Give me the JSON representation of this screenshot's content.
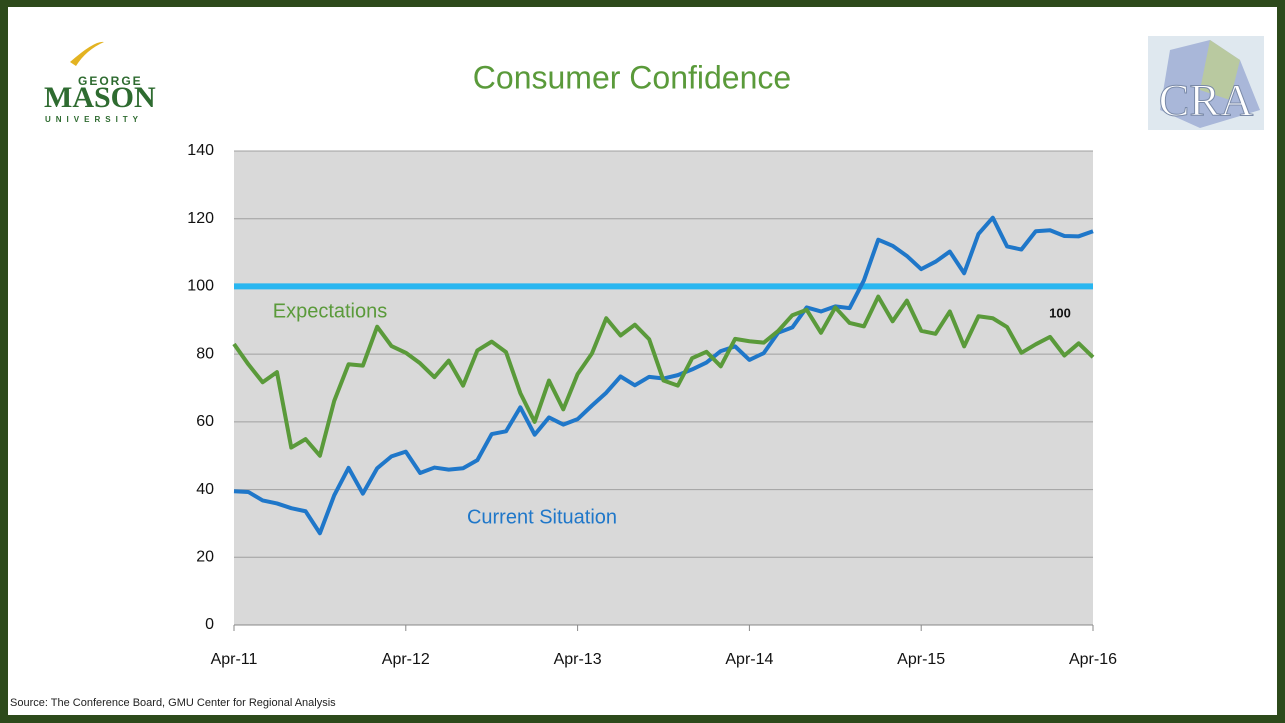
{
  "chart_data": {
    "type": "line",
    "title": "Consumer Confidence",
    "categories": [
      "Apr-11",
      null,
      null,
      null,
      null,
      null,
      null,
      null,
      null,
      null,
      null,
      null,
      "Apr-12",
      null,
      null,
      null,
      null,
      null,
      null,
      null,
      null,
      null,
      null,
      null,
      "Apr-13",
      null,
      null,
      null,
      null,
      null,
      null,
      null,
      null,
      null,
      null,
      null,
      "Apr-14",
      null,
      null,
      null,
      null,
      null,
      null,
      null,
      null,
      null,
      null,
      null,
      "Apr-15",
      null,
      null,
      null,
      null,
      null,
      null,
      null,
      null,
      null,
      null,
      null,
      "Apr-16"
    ],
    "series": [
      {
        "name": "Current Situation",
        "color": "#1f77c9",
        "values": [
          39.5,
          39.3,
          36.8,
          35.9,
          34.5,
          33.6,
          27.1,
          38.3,
          46.4,
          38.8,
          46.3,
          49.8,
          51.2,
          44.9,
          46.5,
          45.9,
          46.3,
          48.7,
          56.4,
          57.2,
          64.3,
          56.2,
          61.3,
          59.2,
          60.8,
          64.8,
          68.6,
          73.4,
          70.8,
          73.3,
          72.8,
          73.8,
          75.5,
          77.5,
          80.9,
          82.3,
          78.3,
          80.3,
          86.3,
          87.9,
          93.8,
          92.6,
          94.1,
          93.6,
          101.8,
          113.8,
          112.0,
          109.0,
          105.1,
          107.3,
          110.3,
          103.9,
          115.5,
          120.3,
          111.8,
          110.9,
          116.3,
          116.6,
          114.9,
          114.8,
          116.3
        ]
      },
      {
        "name": "Expectations",
        "color": "#5a9a3a",
        "values": [
          83,
          77,
          71.7,
          74.7,
          52.4,
          54.9,
          50,
          66.2,
          77,
          76.6,
          88.1,
          82.4,
          80.4,
          77.3,
          73.2,
          78.1,
          70.7,
          81.1,
          83.7,
          80.6,
          68.5,
          60.0,
          72.2,
          63.7,
          74.1,
          80.2,
          90.6,
          85.5,
          88.7,
          84.4,
          72.2,
          70.7,
          78.8,
          80.7,
          76.4,
          84.5,
          83.8,
          83.4,
          86.8,
          91.5,
          93.1,
          86.3,
          93.8,
          89.2,
          88.2,
          97,
          89.7,
          95.8,
          86.9,
          86,
          92.6,
          82.3,
          91.2,
          90.6,
          88,
          80.4,
          82.9,
          85.1,
          79.6,
          83.2,
          79.1
        ]
      }
    ],
    "reference_line": {
      "value": 100,
      "color": "#29b6f0"
    },
    "ylim": [
      0,
      140
    ],
    "yticks": [
      0,
      20,
      40,
      60,
      80,
      100,
      120,
      140
    ],
    "grid": true,
    "source": "Source: The Conference Board, GMU Center for Regional Analysis"
  },
  "logos": {
    "left": [
      "GEORGE",
      "MASON",
      "UNIVERSITY"
    ],
    "right": "CRA"
  }
}
